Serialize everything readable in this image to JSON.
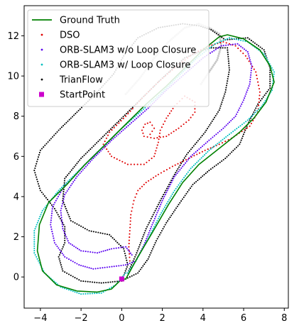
{
  "chart_data": {
    "type": "scatter",
    "xlim": [
      -4.8,
      8.2
    ],
    "ylim": [
      -1.55,
      13.5
    ],
    "xticks": [
      -4,
      -2,
      0,
      2,
      4,
      6,
      8
    ],
    "yticks": [
      0,
      2,
      4,
      6,
      8,
      10,
      12
    ],
    "grid": false,
    "legend_position": "top-left",
    "series": [
      {
        "name": "Ground Truth",
        "kind": "line",
        "color": "#008000",
        "points": [
          [
            0,
            -0.1
          ],
          [
            -0.5,
            -0.6
          ],
          [
            -1.2,
            -0.75
          ],
          [
            -2.2,
            -0.7
          ],
          [
            -3.2,
            -0.4
          ],
          [
            -3.9,
            0.3
          ],
          [
            -4.15,
            1.3
          ],
          [
            -4.05,
            2.6
          ],
          [
            -3.6,
            3.7
          ],
          [
            -2.7,
            4.6
          ],
          [
            -1.8,
            5.6
          ],
          [
            -0.8,
            6.6
          ],
          [
            0.2,
            7.6
          ],
          [
            1.2,
            8.6
          ],
          [
            2.2,
            9.5
          ],
          [
            3.1,
            10.4
          ],
          [
            4,
            11.3
          ],
          [
            4.8,
            11.95
          ],
          [
            5.2,
            12.05
          ],
          [
            6,
            11.85
          ],
          [
            6.8,
            11.3
          ],
          [
            7.3,
            10.5
          ],
          [
            7.5,
            9.7
          ],
          [
            7.1,
            8.7
          ],
          [
            6.5,
            7.9
          ],
          [
            5.8,
            7.2
          ],
          [
            4.8,
            6.4
          ],
          [
            3.8,
            5.6
          ],
          [
            3,
            4.7
          ],
          [
            2.3,
            3.6
          ],
          [
            1.5,
            2.2
          ],
          [
            0.8,
            1
          ],
          [
            0.2,
            -0.1
          ],
          [
            0,
            -0.1
          ]
        ]
      },
      {
        "name": "DSO",
        "kind": "scatter",
        "color": "#e00000",
        "points": [
          [
            0.4,
            0.8
          ],
          [
            0.35,
            1.5
          ],
          [
            0.4,
            2.3
          ],
          [
            0.45,
            3.1
          ],
          [
            0.6,
            3.8
          ],
          [
            0.8,
            4.3
          ],
          [
            1.2,
            4.7
          ],
          [
            1.8,
            5.1
          ],
          [
            2.5,
            5.5
          ],
          [
            3.3,
            5.9
          ],
          [
            4.1,
            6.3
          ],
          [
            4.8,
            6.6
          ],
          [
            5.4,
            6.9
          ],
          [
            6.3,
            7.5
          ],
          [
            6.7,
            8.2
          ],
          [
            6.8,
            9.2
          ],
          [
            6.6,
            10.2
          ],
          [
            6.1,
            11
          ],
          [
            5.6,
            11.5
          ],
          [
            5,
            11.7
          ],
          [
            4.3,
            11.5
          ],
          [
            3.5,
            11.1
          ],
          [
            2.6,
            10.4
          ],
          [
            1.8,
            9.7
          ],
          [
            1.1,
            9
          ],
          [
            0.2,
            8
          ],
          [
            -0.6,
            7.2
          ],
          [
            -0.9,
            6.6
          ],
          [
            -0.5,
            6
          ],
          [
            0.3,
            5.6
          ],
          [
            1.1,
            5.6
          ],
          [
            1.6,
            6
          ],
          [
            1.8,
            6.7
          ],
          [
            1.9,
            7.3
          ],
          [
            2.2,
            7.9
          ],
          [
            2.6,
            8.5
          ],
          [
            3.1,
            9
          ],
          [
            3.6,
            8.7
          ],
          [
            3.6,
            8.2
          ],
          [
            3.3,
            7.8
          ],
          [
            2.8,
            7.4
          ],
          [
            2.2,
            7
          ],
          [
            1.6,
            6.9
          ],
          [
            1.1,
            7
          ],
          [
            1,
            7.3
          ],
          [
            1.15,
            7.6
          ],
          [
            1.4,
            7.7
          ],
          [
            1.6,
            7.4
          ],
          [
            1.4,
            7.1
          ]
        ]
      },
      {
        "name": "ORB-SLAM3 w/o Loop Closure",
        "kind": "scatter",
        "color": "#5a00f0",
        "points": [
          [
            0.5,
            1.1
          ],
          [
            0.2,
            1.5
          ],
          [
            -0.5,
            1.4
          ],
          [
            -1.2,
            1.2
          ],
          [
            -2,
            1.3
          ],
          [
            -2.6,
            1.7
          ],
          [
            -2.9,
            2.4
          ],
          [
            -3,
            3.3
          ],
          [
            -2.8,
            4.1
          ],
          [
            -2.2,
            5
          ],
          [
            -1.4,
            5.9
          ],
          [
            -0.5,
            6.8
          ],
          [
            0.4,
            7.6
          ],
          [
            1.3,
            8.4
          ],
          [
            2.2,
            9.3
          ],
          [
            3.1,
            10.1
          ],
          [
            4,
            10.9
          ],
          [
            4.9,
            11.5
          ],
          [
            5.7,
            11.6
          ],
          [
            6.2,
            11.2
          ],
          [
            6.4,
            10.5
          ],
          [
            6.3,
            9.6
          ],
          [
            6,
            8.8
          ],
          [
            5.6,
            8
          ],
          [
            5,
            7.4
          ],
          [
            4.3,
            6.8
          ],
          [
            3.4,
            6
          ],
          [
            2.6,
            5
          ],
          [
            2,
            3.8
          ],
          [
            1.5,
            2.6
          ],
          [
            1.1,
            1.6
          ],
          [
            0.7,
            0.8
          ],
          [
            0.2,
            0.6
          ],
          [
            -0.6,
            0.5
          ],
          [
            -1.4,
            0.4
          ],
          [
            -2.1,
            0.6
          ],
          [
            -2.8,
            1
          ],
          [
            -3.3,
            1.7
          ],
          [
            -3.5,
            2.6
          ],
          [
            -3.4,
            3.5
          ],
          [
            -2.9,
            4.4
          ],
          [
            -2.1,
            5.3
          ],
          [
            -1.2,
            6.2
          ]
        ]
      },
      {
        "name": "ORB-SLAM3 w/ Loop Closure",
        "kind": "scatter",
        "color": "#00c0c0",
        "points": [
          [
            0.2,
            0.2
          ],
          [
            -0.3,
            -0.4
          ],
          [
            -1,
            -0.8
          ],
          [
            -2,
            -0.85
          ],
          [
            -3,
            -0.5
          ],
          [
            -3.8,
            0.2
          ],
          [
            -4.3,
            1.2
          ],
          [
            -4.3,
            2.3
          ],
          [
            -3.9,
            3.3
          ],
          [
            -3.1,
            4.3
          ],
          [
            -2.1,
            5.3
          ],
          [
            -1.1,
            6.3
          ],
          [
            -0.1,
            7.3
          ],
          [
            0.9,
            8.2
          ],
          [
            1.9,
            9.1
          ],
          [
            2.8,
            10
          ],
          [
            3.7,
            10.9
          ],
          [
            4.6,
            11.6
          ],
          [
            5.3,
            11.9
          ],
          [
            6.2,
            11.7
          ],
          [
            7,
            11.1
          ],
          [
            7.5,
            10.2
          ],
          [
            7.4,
            9.3
          ],
          [
            6.9,
            8.5
          ],
          [
            6.2,
            7.8
          ],
          [
            5.3,
            7.1
          ],
          [
            4.3,
            6.3
          ],
          [
            3.4,
            5.4
          ],
          [
            2.6,
            4.3
          ],
          [
            1.9,
            3.1
          ],
          [
            1.3,
            1.9
          ],
          [
            0.7,
            0.8
          ],
          [
            0.3,
            0.2
          ]
        ]
      },
      {
        "name": "TrianFlow",
        "kind": "scatter",
        "color": "#000000",
        "points": [
          [
            0,
            -0.2
          ],
          [
            0.8,
            0.2
          ],
          [
            1.3,
            0.9
          ],
          [
            1.7,
            1.8
          ],
          [
            2.2,
            2.7
          ],
          [
            2.8,
            3.6
          ],
          [
            3.5,
            4.6
          ],
          [
            4.3,
            5.3
          ],
          [
            5.1,
            5.9
          ],
          [
            5.8,
            6.6
          ],
          [
            6.2,
            7.6
          ],
          [
            6.7,
            8.6
          ],
          [
            7.3,
            9.4
          ],
          [
            7.3,
            10.4
          ],
          [
            7,
            11.3
          ],
          [
            6.2,
            11.9
          ],
          [
            5.1,
            11.8
          ],
          [
            4.4,
            12.3
          ],
          [
            3.8,
            12.5
          ],
          [
            3,
            12.6
          ],
          [
            1.8,
            12.4
          ],
          [
            0.8,
            11.9
          ],
          [
            0.1,
            11
          ],
          [
            -0.4,
            10.1
          ],
          [
            -1.2,
            9.2
          ],
          [
            -2.2,
            8.2
          ],
          [
            -3.1,
            7.3
          ],
          [
            -4,
            6.3
          ],
          [
            -4.3,
            5.3
          ],
          [
            -4,
            4.3
          ],
          [
            -3.3,
            3.4
          ],
          [
            -2.8,
            2.5
          ],
          [
            -2.8,
            1.7
          ],
          [
            -3.1,
            1
          ],
          [
            -2.9,
            0.3
          ],
          [
            -2,
            -0.2
          ],
          [
            -1,
            -0.3
          ],
          [
            0,
            -0.2
          ],
          [
            0.3,
            0.6
          ],
          [
            0.1,
            1.4
          ],
          [
            -0.6,
            2.1
          ],
          [
            -1.6,
            2.3
          ],
          [
            -2.5,
            2.8
          ],
          [
            -2.9,
            3.8
          ],
          [
            -2.8,
            4.9
          ],
          [
            -2,
            5.9
          ],
          [
            -1,
            6.9
          ],
          [
            0,
            7.9
          ],
          [
            1,
            8.9
          ],
          [
            2,
            9.9
          ],
          [
            3.1,
            10.9
          ],
          [
            4.3,
            11.4
          ],
          [
            5.2,
            11.4
          ],
          [
            5.3,
            10.3
          ],
          [
            5.1,
            9.2
          ],
          [
            4.8,
            8.3
          ],
          [
            4.1,
            7.2
          ],
          [
            3.2,
            6.1
          ],
          [
            2.6,
            5.1
          ],
          [
            1.9,
            3.8
          ],
          [
            1.2,
            2.4
          ],
          [
            0.7,
            1.1
          ],
          [
            0.3,
            0.2
          ]
        ]
      },
      {
        "name": "",
        "kind": "scatter",
        "color": "#c8c8c8",
        "points": [
          [
            0.2,
            9.1
          ],
          [
            0.9,
            9.9
          ],
          [
            1.6,
            10.9
          ],
          [
            2.3,
            11.7
          ],
          [
            3.1,
            12.4
          ],
          [
            3.8,
            12.6
          ],
          [
            4.3,
            12.4
          ],
          [
            4.8,
            12.1
          ],
          [
            4.9,
            11.5
          ],
          [
            4.7,
            10.8
          ],
          [
            4.3,
            10.2
          ],
          [
            3.9,
            9.6
          ]
        ]
      },
      {
        "name": "StartPoint",
        "kind": "marker",
        "color": "#cc00cc",
        "points": [
          [
            0,
            -0.1
          ]
        ]
      }
    ]
  }
}
